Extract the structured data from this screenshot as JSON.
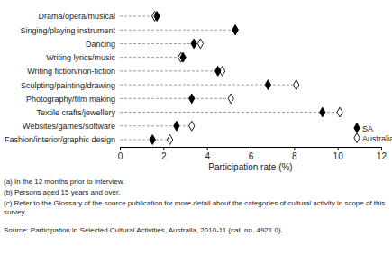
{
  "chart_data": {
    "type": "dot",
    "orientation": "horizontal",
    "categories": [
      "Drama/opera/musical",
      "Singing/playing instrument",
      "Dancing",
      "Writing lyrics/music",
      "Writing fiction/non-fiction",
      "Sculpting/painting/drawing",
      "Photography/film making",
      "Textile crafts/jewellery",
      "Websites/games/software",
      "Fashion/interior/graphic design"
    ],
    "series": [
      {
        "name": "SA",
        "color": "#000000",
        "marker": "diamond-filled",
        "values": [
          1.7,
          5.3,
          3.4,
          2.9,
          4.5,
          6.8,
          3.3,
          9.3,
          2.6,
          1.5
        ]
      },
      {
        "name": "Australia",
        "color": "#000000",
        "marker": "diamond-open",
        "values": [
          1.6,
          5.3,
          3.7,
          2.8,
          4.7,
          8.1,
          5.1,
          10.1,
          3.3,
          2.3
        ]
      }
    ],
    "x_label": "Participation rate (%)",
    "xlim": [
      0,
      12
    ],
    "xticks": [
      0,
      2,
      4,
      6,
      8,
      10,
      12
    ],
    "line_style": "dashed",
    "legend": "lower right",
    "annotations": [
      "(a) In the 12 months prior to interview.",
      "(b) Persons aged 15 years and over.",
      "(c) Refer to the Glossary of the source publication for more detail about the categories of cultural activity in scope of this survey.",
      "Source: Participation in Selected Cultural Activities, Australia, 2010-11 (cat. no. 4921.0)."
    ]
  }
}
